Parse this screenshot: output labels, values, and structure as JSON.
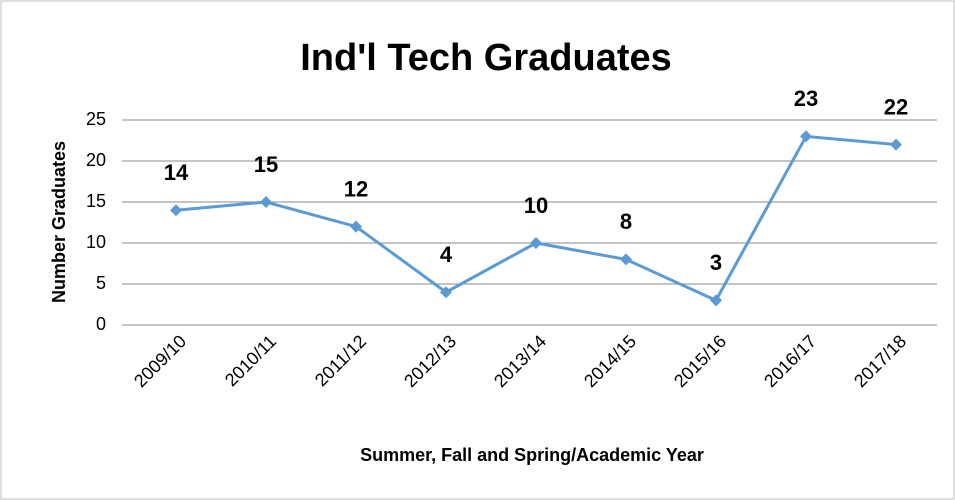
{
  "chart_data": {
    "type": "line",
    "title": "Ind'l Tech Graduates",
    "x_label": "Summer, Fall and Spring/Academic Year",
    "y_label": "Number Graduates",
    "categories": [
      "2009/10",
      "2010/11",
      "2011/12",
      "2012/13",
      "2013/14",
      "2014/15",
      "2015/16",
      "2016/17",
      "2017/18"
    ],
    "values": [
      14,
      15,
      12,
      4,
      10,
      8,
      3,
      23,
      22
    ],
    "color": "#5b9bd5",
    "ylim": [
      0,
      25
    ],
    "yticks": [
      0,
      5,
      10,
      15,
      20,
      25
    ],
    "grid": true
  }
}
